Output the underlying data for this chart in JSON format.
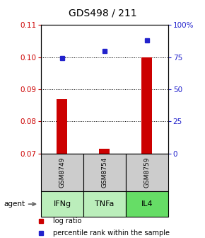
{
  "title": "GDS498 / 211",
  "samples": [
    "GSM8749",
    "GSM8754",
    "GSM8759"
  ],
  "agents": [
    "IFNg",
    "TNFa",
    "IL4"
  ],
  "log_ratio": [
    0.087,
    0.0715,
    0.1
  ],
  "percentile": [
    74,
    80,
    88
  ],
  "ylim_left": [
    0.07,
    0.11
  ],
  "ylim_right": [
    0,
    100
  ],
  "yticks_left": [
    0.07,
    0.08,
    0.09,
    0.1,
    0.11
  ],
  "yticks_right": [
    0,
    25,
    50,
    75,
    100
  ],
  "ytick_labels_right": [
    "0",
    "25",
    "50",
    "75",
    "100%"
  ],
  "bar_color": "#cc0000",
  "square_color": "#2222cc",
  "agent_bg_colors": [
    "#bbeebb",
    "#bbeebb",
    "#66dd66"
  ],
  "sample_bg_color": "#cccccc",
  "baseline": 0.07,
  "agent_label": "agent",
  "bar_width": 0.25
}
